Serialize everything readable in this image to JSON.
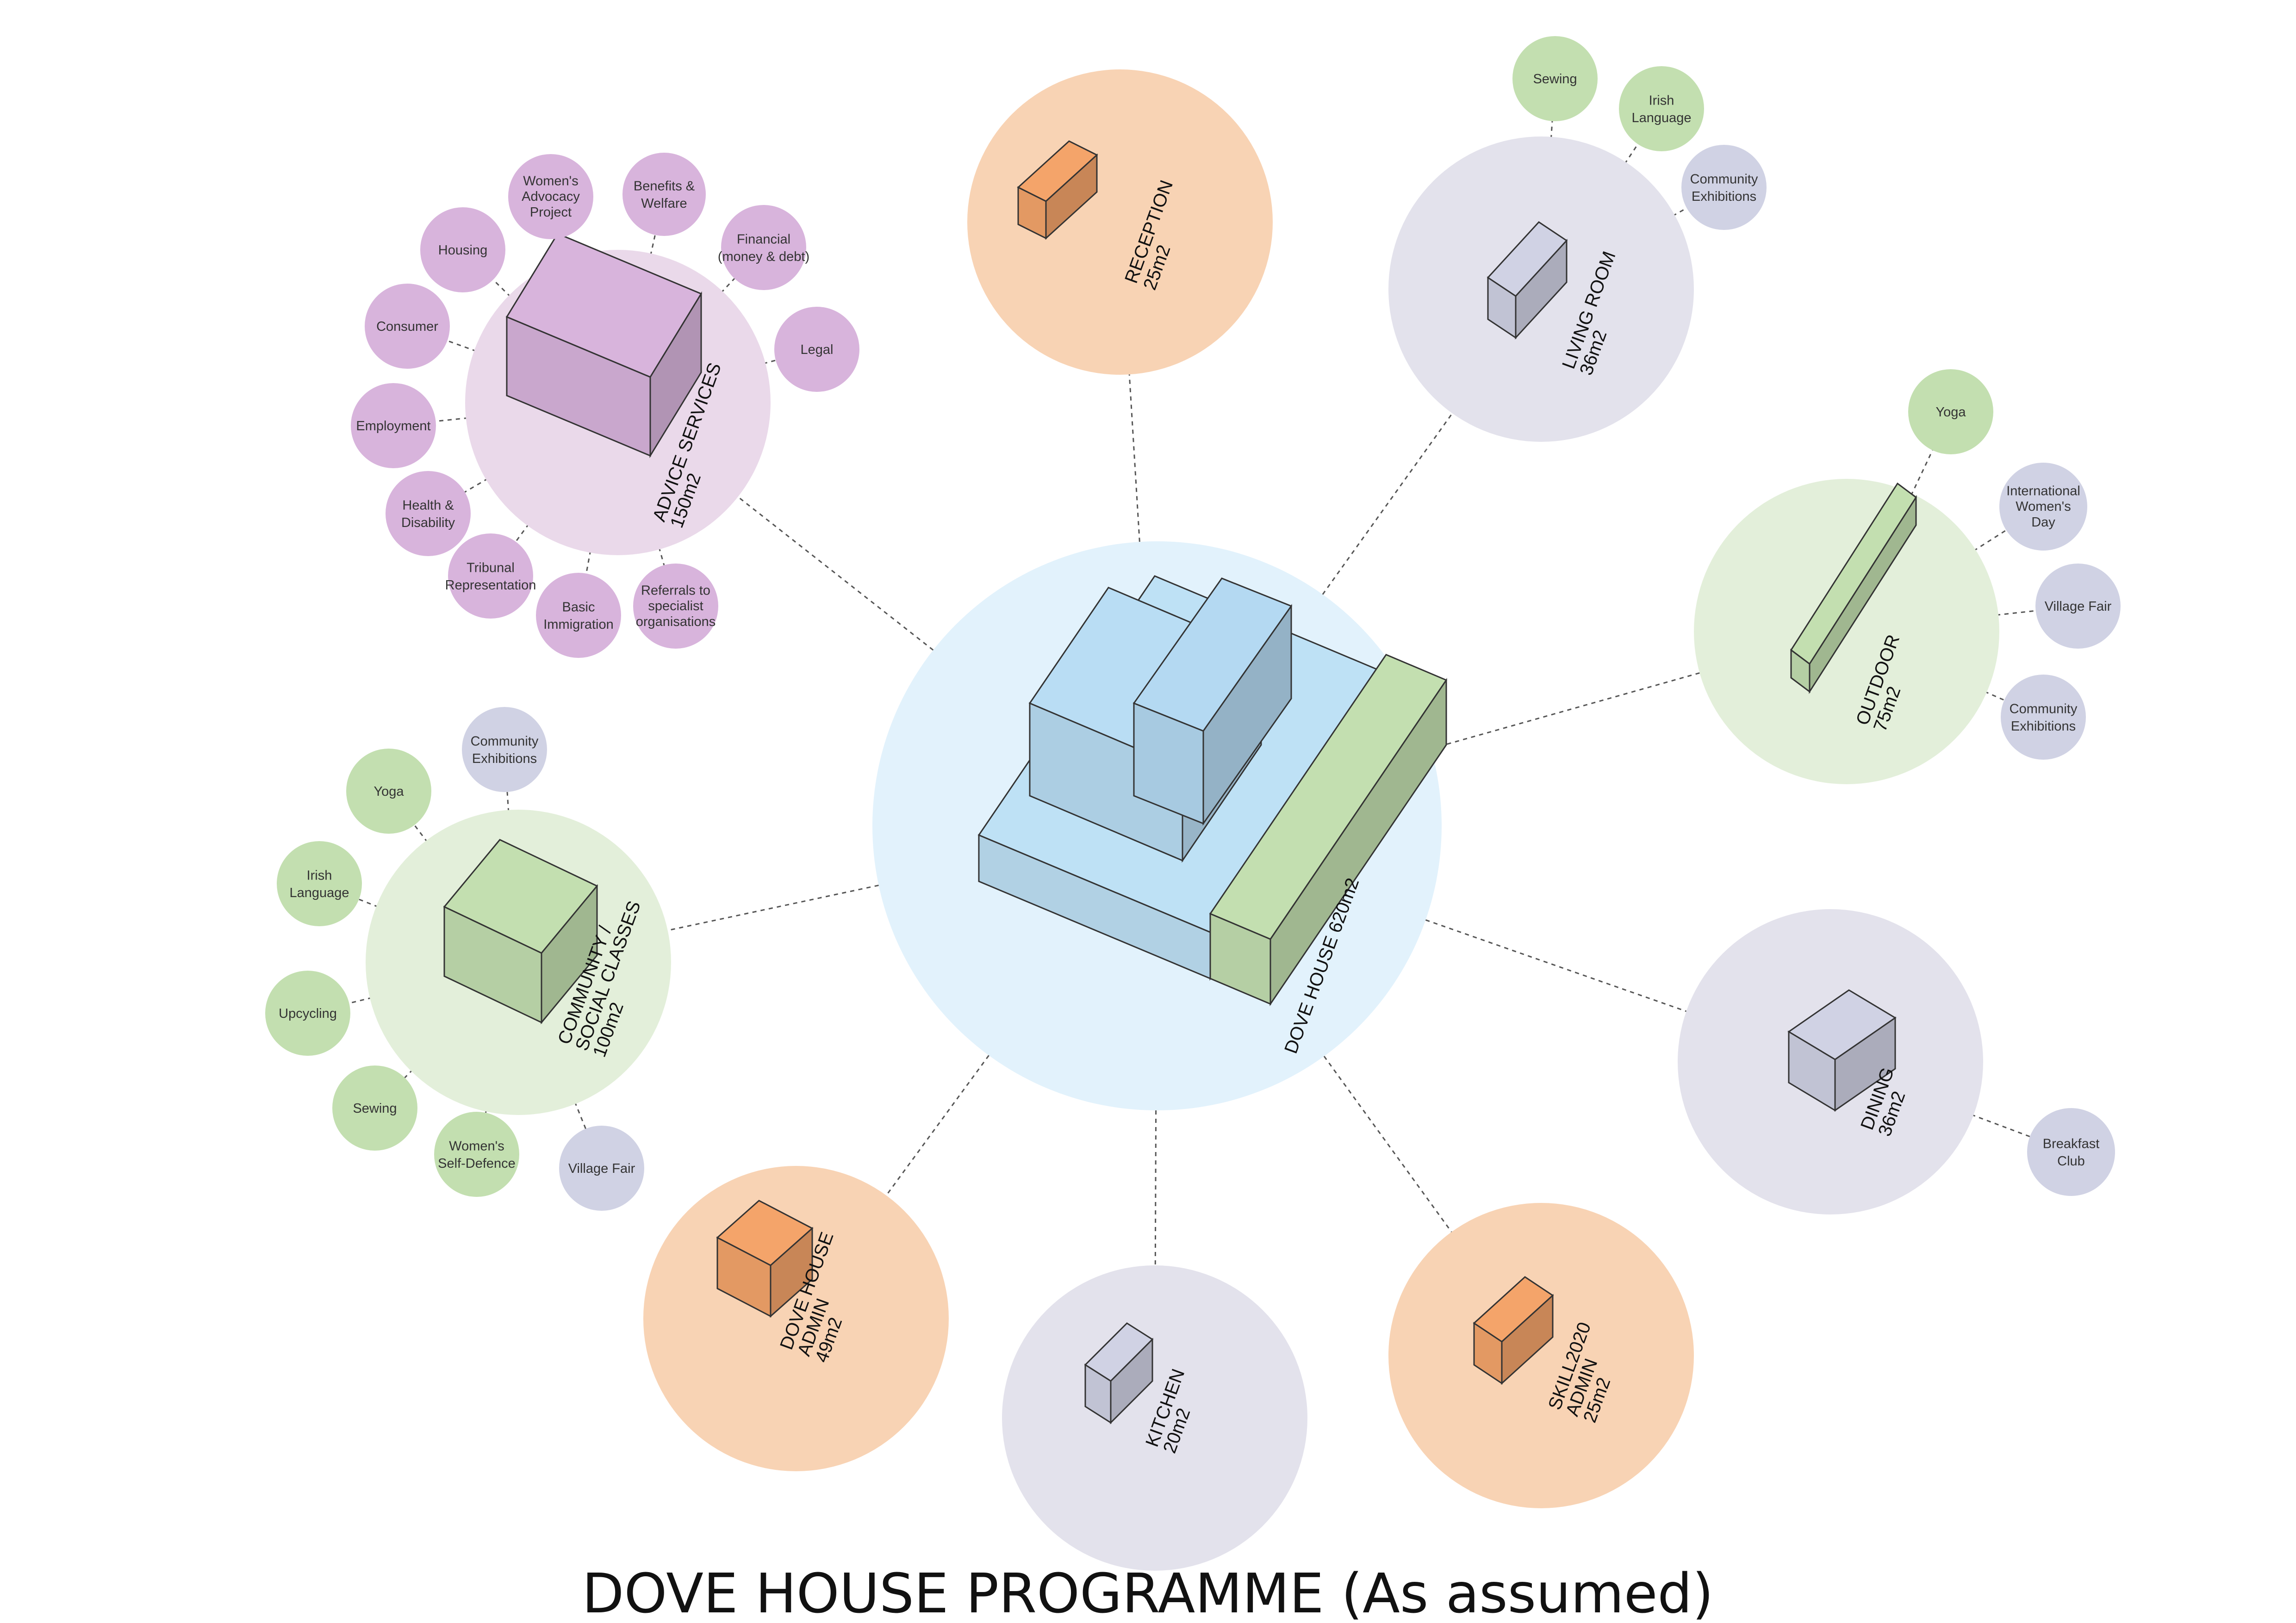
{
  "title": "DOVE HOUSE PROGRAMME (As assumed)",
  "colors": {
    "purple_circle": "#ead9ea",
    "purple_node": "#d8b4dc",
    "orange_circle": "#f8d3b4",
    "orange_box": "#f4a46a",
    "grey_circle": "#e3e2ec",
    "grey_node": "#d0d2e4",
    "green_circle": "#e3efda",
    "green_node": "#c3dfb0",
    "center_circle": "#e2f2fc",
    "center_box": "#bee1f5"
  },
  "center": {
    "label": [
      "DOVE HOUSE 620m2"
    ]
  },
  "rooms": [
    {
      "id": "advice",
      "label": [
        "ADVICE SERVICES",
        "150m2"
      ]
    },
    {
      "id": "reception",
      "label": [
        "RECEPTION",
        "25m2"
      ]
    },
    {
      "id": "living",
      "label": [
        "LIVING ROOM",
        "36m2"
      ]
    },
    {
      "id": "outdoor",
      "label": [
        "OUTDOOR",
        "75m2"
      ]
    },
    {
      "id": "dining",
      "label": [
        "DINING",
        "36m2"
      ]
    },
    {
      "id": "skill",
      "label": [
        "SKILL2020",
        "ADMIN",
        "25m2"
      ]
    },
    {
      "id": "kitchen",
      "label": [
        "KITCHEN",
        "20m2"
      ]
    },
    {
      "id": "admin",
      "label": [
        "DOVE HOUSE",
        "ADMIN",
        "49m2"
      ]
    },
    {
      "id": "community",
      "label": [
        "COMMUNITY /",
        "SOCIAL CLASSES",
        "100m2"
      ]
    }
  ],
  "satellites": {
    "advice": [
      [
        "Women's",
        "Advocacy",
        "Project"
      ],
      [
        "Benefits &",
        "Welfare"
      ],
      [
        "Financial",
        "(money & debt)"
      ],
      [
        "Housing"
      ],
      [
        "Consumer"
      ],
      [
        "Legal"
      ],
      [
        "Employment"
      ],
      [
        "Health &",
        "Disability"
      ],
      [
        "Tribunal",
        "Representation"
      ],
      [
        "Basic",
        "Immigration"
      ],
      [
        "Referrals to",
        "specialist",
        "organisations"
      ]
    ],
    "living": [
      [
        "Sewing"
      ],
      [
        "Irish",
        "Language"
      ],
      [
        "Community",
        "Exhibitions"
      ]
    ],
    "outdoor": [
      [
        "Yoga"
      ],
      [
        "International",
        "Women's",
        "Day"
      ],
      [
        "Village Fair"
      ],
      [
        "Community",
        "Exhibitions"
      ]
    ],
    "dining": [
      [
        "Breakfast",
        "Club"
      ]
    ],
    "community": [
      [
        "Community",
        "Exhibitions"
      ],
      [
        "Yoga"
      ],
      [
        "Irish",
        "Language"
      ],
      [
        "Upcycling"
      ],
      [
        "Sewing"
      ],
      [
        "Women's",
        "Self-Defence"
      ],
      [
        "Village Fair"
      ]
    ]
  }
}
